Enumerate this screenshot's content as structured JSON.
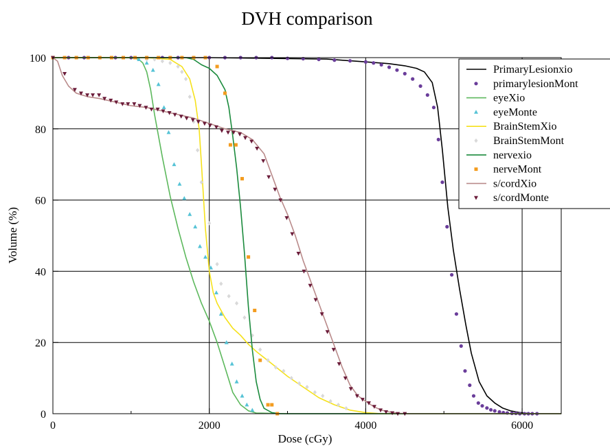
{
  "chart_data": {
    "type": "line",
    "title": "DVH comparison",
    "xlabel": "Dose (cGy)",
    "ylabel": "Volume (%)",
    "xlim": [
      0,
      6500
    ],
    "ylim": [
      0,
      100
    ],
    "xticks": [
      0,
      2000,
      4000,
      6000
    ],
    "yticks": [
      0,
      20,
      40,
      60,
      80,
      100
    ],
    "x_minor_ticks": [
      1000,
      3000,
      5000
    ],
    "grid": true,
    "legend_position": "top-right",
    "series": [
      {
        "name": "PrimaryLesionxio",
        "style": "line",
        "color": "#000000",
        "x": [
          0,
          2000,
          3500,
          4000,
          4300,
          4500,
          4650,
          4750,
          4850,
          4920,
          4980,
          5050,
          5120,
          5200,
          5280,
          5350,
          5450,
          5550,
          5650,
          5750,
          5850,
          5950,
          6100,
          6500
        ],
        "y": [
          100,
          100,
          99.6,
          98.8,
          98.3,
          97.7,
          97,
          96,
          93,
          86,
          74,
          58,
          46,
          35,
          25,
          17,
          9,
          5,
          3,
          1.6,
          0.8,
          0.4,
          0,
          0
        ]
      },
      {
        "name": "primarylesionMont",
        "style": "circle",
        "color": "#6a3d9a",
        "x": [
          0,
          200,
          400,
          600,
          800,
          1000,
          1200,
          1400,
          1600,
          1800,
          2000,
          2200,
          2400,
          2600,
          2800,
          3000,
          3200,
          3400,
          3600,
          3800,
          4000,
          4100,
          4200,
          4300,
          4400,
          4500,
          4600,
          4700,
          4790,
          4870,
          4930,
          4980,
          5040,
          5100,
          5160,
          5220,
          5270,
          5330,
          5380,
          5440,
          5490,
          5550,
          5600,
          5650,
          5710,
          5760,
          5810,
          5870,
          5920,
          5970,
          6030,
          6080,
          6130,
          6190
        ],
        "y": [
          100,
          100,
          100,
          100,
          100,
          100,
          100,
          100,
          100,
          100,
          100,
          100,
          100,
          100,
          100,
          99.8,
          99.7,
          99.5,
          99.3,
          99.1,
          98.8,
          98.5,
          98,
          97.3,
          96.5,
          95.5,
          94,
          92,
          89.5,
          86,
          77,
          65,
          52.5,
          39,
          28,
          19,
          12,
          8,
          5,
          3,
          2.2,
          1.6,
          1.1,
          0.8,
          0.5,
          0.3,
          0.2,
          0.1,
          0.1,
          0,
          0,
          0,
          0,
          0
        ]
      },
      {
        "name": "eyeXio",
        "style": "line",
        "color": "#5cb85c",
        "x": [
          0,
          1000,
          1100,
          1150,
          1200,
          1250,
          1300,
          1400,
          1500,
          1600,
          1700,
          1800,
          1900,
          2000,
          2100,
          2200,
          2300,
          2400,
          2500,
          2600,
          3000,
          6500
        ],
        "y": [
          100,
          100,
          99.5,
          98.5,
          96,
          91,
          84,
          72,
          61,
          52,
          44,
          37,
          31,
          26,
          20,
          13,
          6,
          2.5,
          0.8,
          0.2,
          0,
          0
        ]
      },
      {
        "name": "eyeMonte",
        "style": "triangle",
        "color": "#56c3d6",
        "x": [
          1100,
          1200,
          1280,
          1350,
          1420,
          1480,
          1550,
          1620,
          1680,
          1750,
          1820,
          1880,
          1950,
          2020,
          2090,
          2150,
          2220,
          2290,
          2350,
          2420,
          2480,
          2550
        ],
        "y": [
          99.5,
          98.5,
          96.5,
          92.5,
          86,
          79,
          70,
          64.5,
          60.5,
          56,
          52.5,
          47,
          44,
          41,
          34,
          28,
          20,
          14,
          9,
          5,
          2.5,
          1
        ]
      },
      {
        "name": "BrainStemXio",
        "style": "line",
        "color": "#f5e11a",
        "x": [
          0,
          1200,
          1500,
          1650,
          1750,
          1820,
          1870,
          1900,
          1950,
          2000,
          2050,
          2100,
          2200,
          2300,
          2400,
          2500,
          2600,
          2800,
          3000,
          3200,
          3400,
          3600,
          3800,
          4000,
          4200,
          6500
        ],
        "y": [
          100,
          100,
          99.5,
          97.5,
          94,
          88,
          80,
          70,
          52,
          40,
          34,
          31,
          27,
          24,
          22,
          19.5,
          17.5,
          14,
          10.5,
          7.5,
          4.5,
          2.5,
          1,
          0.3,
          0,
          0
        ]
      },
      {
        "name": "BrainStemMont",
        "style": "diamond",
        "color": "#d9d9d9",
        "x": [
          1200,
          1300,
          1400,
          1500,
          1600,
          1650,
          1700,
          1750,
          1800,
          1850,
          1900,
          2000,
          2100,
          2150,
          2250,
          2350,
          2450,
          2550,
          2650,
          2750,
          2850,
          2950,
          3050,
          3150,
          3250,
          3350,
          3450,
          3550,
          3650,
          3750
        ],
        "y": [
          99.5,
          99.5,
          99,
          98.5,
          97.5,
          96,
          94,
          89,
          82,
          74,
          65,
          53.5,
          42,
          36.5,
          33,
          31,
          27,
          22,
          18,
          15,
          13,
          12,
          10,
          8.5,
          7.5,
          6,
          5,
          3.5,
          2.5,
          1.5
        ]
      },
      {
        "name": "nervexio",
        "style": "line",
        "color": "#1a8a3c",
        "x": [
          0,
          1700,
          1800,
          1900,
          2000,
          2100,
          2200,
          2250,
          2300,
          2350,
          2400,
          2450,
          2500,
          2550,
          2600,
          2650,
          2700,
          2800,
          2900,
          6500
        ],
        "y": [
          100,
          100,
          99.5,
          98,
          97,
          95,
          91,
          86,
          78,
          69,
          58,
          45,
          30,
          18,
          9,
          4,
          1.5,
          0.3,
          0,
          0
        ]
      },
      {
        "name": "nerveMont",
        "style": "square",
        "color": "#f39c1f",
        "x": [
          0,
          150,
          300,
          450,
          600,
          750,
          900,
          1050,
          1200,
          1350,
          1500,
          1650,
          1800,
          1950,
          2100,
          2200,
          2270,
          2340,
          2420,
          2500,
          2580,
          2650,
          2750,
          2800,
          2870
        ],
        "y": [
          100,
          100,
          100,
          100,
          100,
          100,
          100,
          100,
          100,
          100,
          100,
          100,
          100,
          100,
          97.5,
          90,
          75.5,
          75.5,
          66,
          44,
          29,
          15,
          2.5,
          2.5,
          0
        ]
      },
      {
        "name": "s/cordXio",
        "style": "line",
        "color": "#b98a8a",
        "x": [
          0,
          60,
          120,
          200,
          300,
          450,
          600,
          800,
          1000,
          1200,
          1400,
          1600,
          1800,
          2000,
          2200,
          2400,
          2550,
          2700,
          2800,
          2900,
          3000,
          3100,
          3200,
          3300,
          3400,
          3500,
          3600,
          3700,
          3800,
          3900,
          4000,
          4100,
          4200,
          4300,
          4400,
          4500,
          6500
        ],
        "y": [
          100,
          99,
          95,
          92,
          90,
          89,
          88.5,
          87.5,
          86.5,
          86,
          85,
          84,
          83,
          81.5,
          80,
          79,
          77,
          73,
          67,
          61,
          56,
          50,
          43,
          37,
          31,
          25,
          19,
          13,
          8,
          5,
          3.5,
          2,
          1,
          0.5,
          0.2,
          0,
          0
        ]
      },
      {
        "name": "s/cordMonte",
        "style": "triangle-down",
        "color": "#6b1c3a",
        "x": [
          0,
          150,
          280,
          360,
          440,
          510,
          590,
          660,
          740,
          810,
          890,
          960,
          1040,
          1110,
          1190,
          1260,
          1340,
          1410,
          1490,
          1560,
          1640,
          1710,
          1790,
          1860,
          1940,
          2010,
          2090,
          2160,
          2240,
          2310,
          2390,
          2460,
          2540,
          2610,
          2690,
          2760,
          2840,
          2910,
          2990,
          3060,
          3140,
          3210,
          3290,
          3360,
          3440,
          3510,
          3590,
          3660,
          3740,
          3810,
          3890,
          3960,
          4040,
          4110,
          4190,
          4260,
          4340,
          4410,
          4500
        ],
        "y": [
          100,
          95.5,
          91,
          90,
          89.5,
          89.5,
          89.5,
          88.5,
          88,
          87.5,
          87,
          87,
          87,
          86.5,
          86,
          85.5,
          85.5,
          85,
          84.5,
          84,
          83.5,
          83,
          82.5,
          82,
          81.5,
          81,
          80.5,
          79.5,
          79,
          79,
          78.5,
          77.5,
          76.5,
          74.5,
          71,
          66.5,
          63,
          60,
          55,
          50.5,
          45,
          40,
          36,
          32,
          28,
          23,
          18,
          14,
          10,
          7,
          5,
          4,
          3,
          2,
          1,
          0.5,
          0.2,
          0,
          0
        ]
      }
    ]
  }
}
